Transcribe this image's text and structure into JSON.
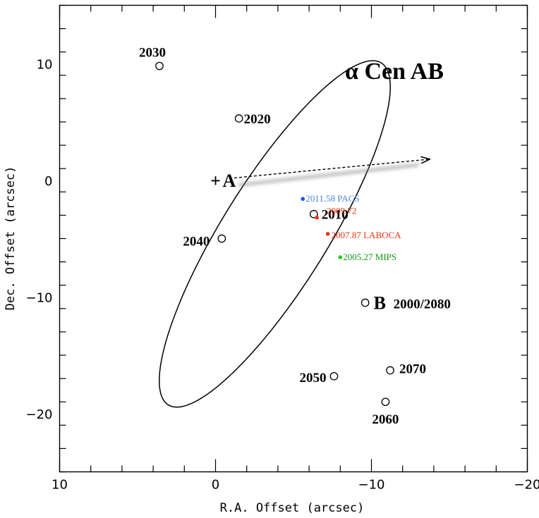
{
  "chart_data": {
    "type": "scatter",
    "title": "α Cen AB",
    "xlabel": "R.A. Offset (arcsec)",
    "ylabel": "Dec. Offset (arcsec)",
    "xlim": [
      10,
      -20
    ],
    "ylim": [
      -25,
      15
    ],
    "xticks": [
      {
        "value": 10,
        "label": "10"
      },
      {
        "value": 0,
        "label": "0"
      },
      {
        "value": -10,
        "label": "−10"
      },
      {
        "value": -20,
        "label": "−20"
      }
    ],
    "yticks": [
      {
        "value": 10,
        "label": "10"
      },
      {
        "value": 0,
        "label": "0"
      },
      {
        "value": -10,
        "label": "−10"
      },
      {
        "value": -20,
        "label": "−20"
      }
    ],
    "orbit": {
      "center": [
        -3.8,
        -4.6
      ],
      "semi_major": 16.2,
      "semi_minor": 3.6,
      "major_axis_angle_deg": -65.8
    },
    "primary": {
      "label": "A",
      "x": 0,
      "y": 0
    },
    "secondary_label": "B",
    "epochs": [
      {
        "year": "2030",
        "x": 3.6,
        "y": 9.8
      },
      {
        "year": "2020",
        "x": -1.5,
        "y": 5.3
      },
      {
        "year": "2010",
        "x": -6.3,
        "y": -2.9
      },
      {
        "year": "2000/2080",
        "x": -9.6,
        "y": -10.5
      },
      {
        "year": "2040",
        "x": -0.4,
        "y": -5.0
      },
      {
        "year": "2050",
        "x": -7.6,
        "y": -16.8
      },
      {
        "year": "2060",
        "x": -10.9,
        "y": -19.0
      },
      {
        "year": "2070",
        "x": -11.2,
        "y": -16.3
      }
    ],
    "observations": [
      {
        "label": "2011.58 PACS",
        "x": -5.6,
        "y": -1.6,
        "color": "#2255ee",
        "text_color": "#4a86e8"
      },
      {
        "label": "2009.72",
        "x": -6.5,
        "y": -3.2,
        "color": "#ee3311",
        "text_color": "#ee3311"
      },
      {
        "label": "2007.87 LABOCA",
        "x": -7.2,
        "y": -4.6,
        "color": "#ee3311",
        "text_color": "#ee3311"
      },
      {
        "label": "2005.27 MIPS",
        "x": -8.0,
        "y": -6.6,
        "color": "#22cc22",
        "text_color": "#119911"
      }
    ],
    "proper_motion": {
      "x0": -1.2,
      "y0": 0.2,
      "x1": -13.7,
      "y1": 1.8
    }
  }
}
